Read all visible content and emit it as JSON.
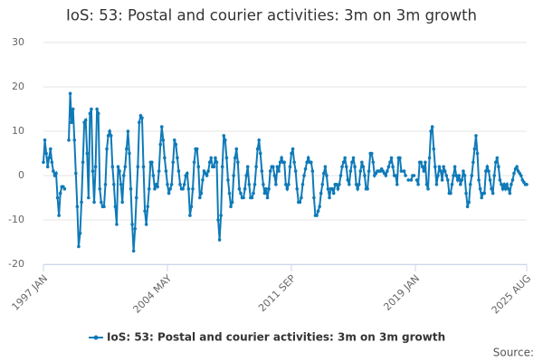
{
  "chart_data": {
    "type": "line",
    "title": "IoS: 53: Postal and courier activities: 3m on 3m growth",
    "source": "Source:",
    "x": [
      "1997 JAN",
      null,
      null,
      null,
      null,
      null,
      null,
      null,
      null,
      null,
      null,
      null,
      null,
      null,
      null,
      null,
      null,
      null,
      null,
      null,
      null,
      null,
      null,
      null,
      null,
      null,
      null,
      null,
      null,
      null,
      null,
      null,
      null,
      null,
      null,
      null,
      null,
      null,
      null,
      null,
      null,
      null,
      null,
      null,
      null,
      null,
      null,
      null,
      null,
      null,
      null,
      null,
      null,
      null,
      null,
      null,
      null,
      null,
      null,
      null,
      null,
      null,
      null,
      null,
      null,
      null,
      null,
      null,
      null,
      null,
      null,
      null,
      null,
      null,
      null,
      null,
      null,
      null,
      null,
      null,
      null,
      null,
      null,
      null,
      null,
      null,
      null,
      null,
      "2004 MAY",
      null,
      null,
      null,
      null,
      null,
      null,
      null,
      null,
      null,
      null,
      null,
      null,
      null,
      null,
      null,
      null,
      null,
      null,
      null,
      null,
      null,
      null,
      null,
      null,
      null,
      null,
      null,
      null,
      null,
      null,
      null,
      null,
      null,
      null,
      null,
      null,
      null,
      null,
      null,
      null,
      null,
      null,
      null,
      null,
      null,
      null,
      null,
      null,
      null,
      null,
      null,
      null,
      null,
      null,
      null,
      null,
      null,
      null,
      null,
      null,
      null,
      null,
      null,
      null,
      null,
      null,
      null,
      null,
      null,
      null,
      null,
      null,
      null,
      null,
      null,
      null,
      null,
      null,
      null,
      null,
      null,
      null,
      null,
      null,
      null,
      null,
      null,
      "2011 SEP",
      null,
      null,
      null,
      null,
      null,
      null,
      null,
      null,
      null,
      null,
      null,
      null,
      null,
      null,
      null,
      null,
      null,
      null,
      null,
      null,
      null,
      null,
      null,
      null,
      null,
      null,
      null,
      null,
      null,
      null,
      null,
      null,
      null,
      null,
      null,
      null,
      null,
      null,
      null,
      null,
      null,
      null,
      null,
      null,
      null,
      null,
      null,
      null,
      null,
      null,
      null,
      null,
      null,
      null,
      null,
      null,
      null,
      null,
      null,
      null,
      null,
      null,
      null,
      null,
      null,
      null,
      null,
      null,
      null,
      null,
      null,
      null,
      null,
      null,
      null,
      null,
      null,
      null,
      null,
      null,
      null,
      null,
      null,
      null,
      null,
      null,
      null,
      "2019 JAN",
      null,
      null,
      null,
      null,
      null,
      null,
      null,
      null,
      null,
      null,
      null,
      null,
      null,
      null,
      null,
      null,
      null,
      null,
      null,
      null,
      null,
      null,
      null,
      null,
      null,
      null,
      null,
      null,
      null,
      null,
      null,
      null,
      null,
      null,
      null,
      null,
      null,
      null,
      null,
      null,
      null,
      null,
      null,
      null,
      null,
      null,
      null,
      null,
      null,
      null,
      null,
      null,
      null,
      null,
      null,
      null,
      null,
      null,
      null,
      null,
      null,
      null,
      null,
      null,
      null,
      null,
      null,
      null,
      null,
      null,
      null,
      null,
      null,
      null,
      null,
      null,
      null,
      null,
      "2025 AUG"
    ],
    "series": [
      {
        "name": "IoS: 53: Postal and courier activities: 3m on 3m growth",
        "color": "#0f7ab8",
        "values": [
          3,
          8,
          5,
          2,
          4,
          6,
          3,
          1,
          0,
          0.5,
          -5,
          -9,
          -4,
          -2.5,
          -2.5,
          -3,
          null,
          null,
          8,
          18.5,
          12,
          15,
          8,
          0.5,
          -7,
          -16,
          -13,
          -6,
          3,
          12,
          12.5,
          5,
          -5,
          14,
          15,
          1,
          -6,
          2,
          15,
          14,
          -3,
          -6,
          -7,
          -7,
          -2,
          6,
          9,
          10,
          9,
          2,
          -2,
          -7,
          -11,
          2,
          1,
          -2,
          -6,
          0,
          2,
          6,
          10,
          5,
          -3,
          -11,
          -17,
          -12,
          -5,
          2,
          12,
          13.5,
          13,
          2,
          -8,
          -11,
          -7,
          -3,
          3,
          3,
          0,
          -3,
          -2,
          -2.5,
          1,
          7,
          11,
          8,
          4,
          1,
          -2,
          -4,
          -3,
          -2,
          3,
          8,
          7,
          4,
          1,
          -2,
          -3,
          -3,
          -2,
          0,
          0.5,
          -3,
          -9,
          -7,
          -3,
          3,
          6,
          6,
          2,
          -5,
          -4,
          -1,
          1,
          0.5,
          0,
          1,
          3,
          4,
          2,
          2,
          4,
          3,
          -10,
          -14.5,
          -9,
          2,
          9,
          8,
          4,
          -1,
          -4,
          -7,
          -6,
          0,
          4,
          6,
          3,
          -3,
          -4,
          -5,
          -5,
          -3,
          0,
          2,
          -2,
          -5,
          -5,
          -4,
          -2,
          2,
          6,
          8,
          5,
          1,
          -2,
          -4,
          -3,
          -5,
          -3,
          1,
          2,
          2,
          0,
          -2,
          2,
          1,
          3,
          4,
          3,
          3,
          -2,
          -3,
          -2,
          2,
          5,
          6,
          3,
          1,
          -3,
          -6,
          -6,
          -5,
          -2,
          0,
          1.5,
          3,
          4,
          3,
          3,
          1,
          -5,
          -9,
          -9,
          -8,
          -7,
          -4,
          -2,
          0.5,
          2,
          0,
          -3,
          -5,
          -3,
          -3,
          -4,
          -2,
          -2,
          -3,
          -2,
          0,
          2,
          3,
          4,
          2,
          -1,
          -2,
          1,
          3,
          4,
          2,
          -2,
          -3,
          -2,
          1,
          3,
          2,
          0,
          -3,
          -3,
          1,
          5,
          5,
          3,
          0,
          0.5,
          1,
          1,
          1,
          1.5,
          1,
          0.5,
          0,
          1,
          2,
          3,
          4,
          2,
          0,
          0,
          -2,
          4,
          4,
          1,
          null,
          1,
          0,
          null,
          -1,
          null,
          -1,
          0,
          0,
          null,
          -1,
          -2,
          3,
          3,
          2,
          1,
          3,
          -2,
          -3,
          4,
          10,
          11,
          6,
          2,
          -2,
          0,
          2,
          1,
          -1,
          2,
          1,
          0,
          -1,
          -4,
          -4,
          -2,
          0,
          2,
          0,
          -1,
          0,
          -2,
          -1,
          1,
          0,
          -4,
          -7,
          -6,
          -2,
          0,
          3,
          6,
          9,
          5,
          -1,
          -3,
          -5,
          -4,
          -4,
          1,
          2,
          1,
          -1,
          -3,
          -4,
          0,
          3,
          4,
          2,
          -1,
          -2,
          -3,
          -2,
          -3,
          -2,
          -3,
          -4,
          -2,
          -1,
          0.5,
          1.5,
          2,
          1,
          0.5,
          0,
          -1,
          -1.5,
          -2,
          -2
        ]
      }
    ],
    "ylim": [
      -20,
      30
    ],
    "yticks": [
      -20,
      -10,
      0,
      10,
      20,
      30
    ],
    "grid": true,
    "legend": "bottom"
  }
}
